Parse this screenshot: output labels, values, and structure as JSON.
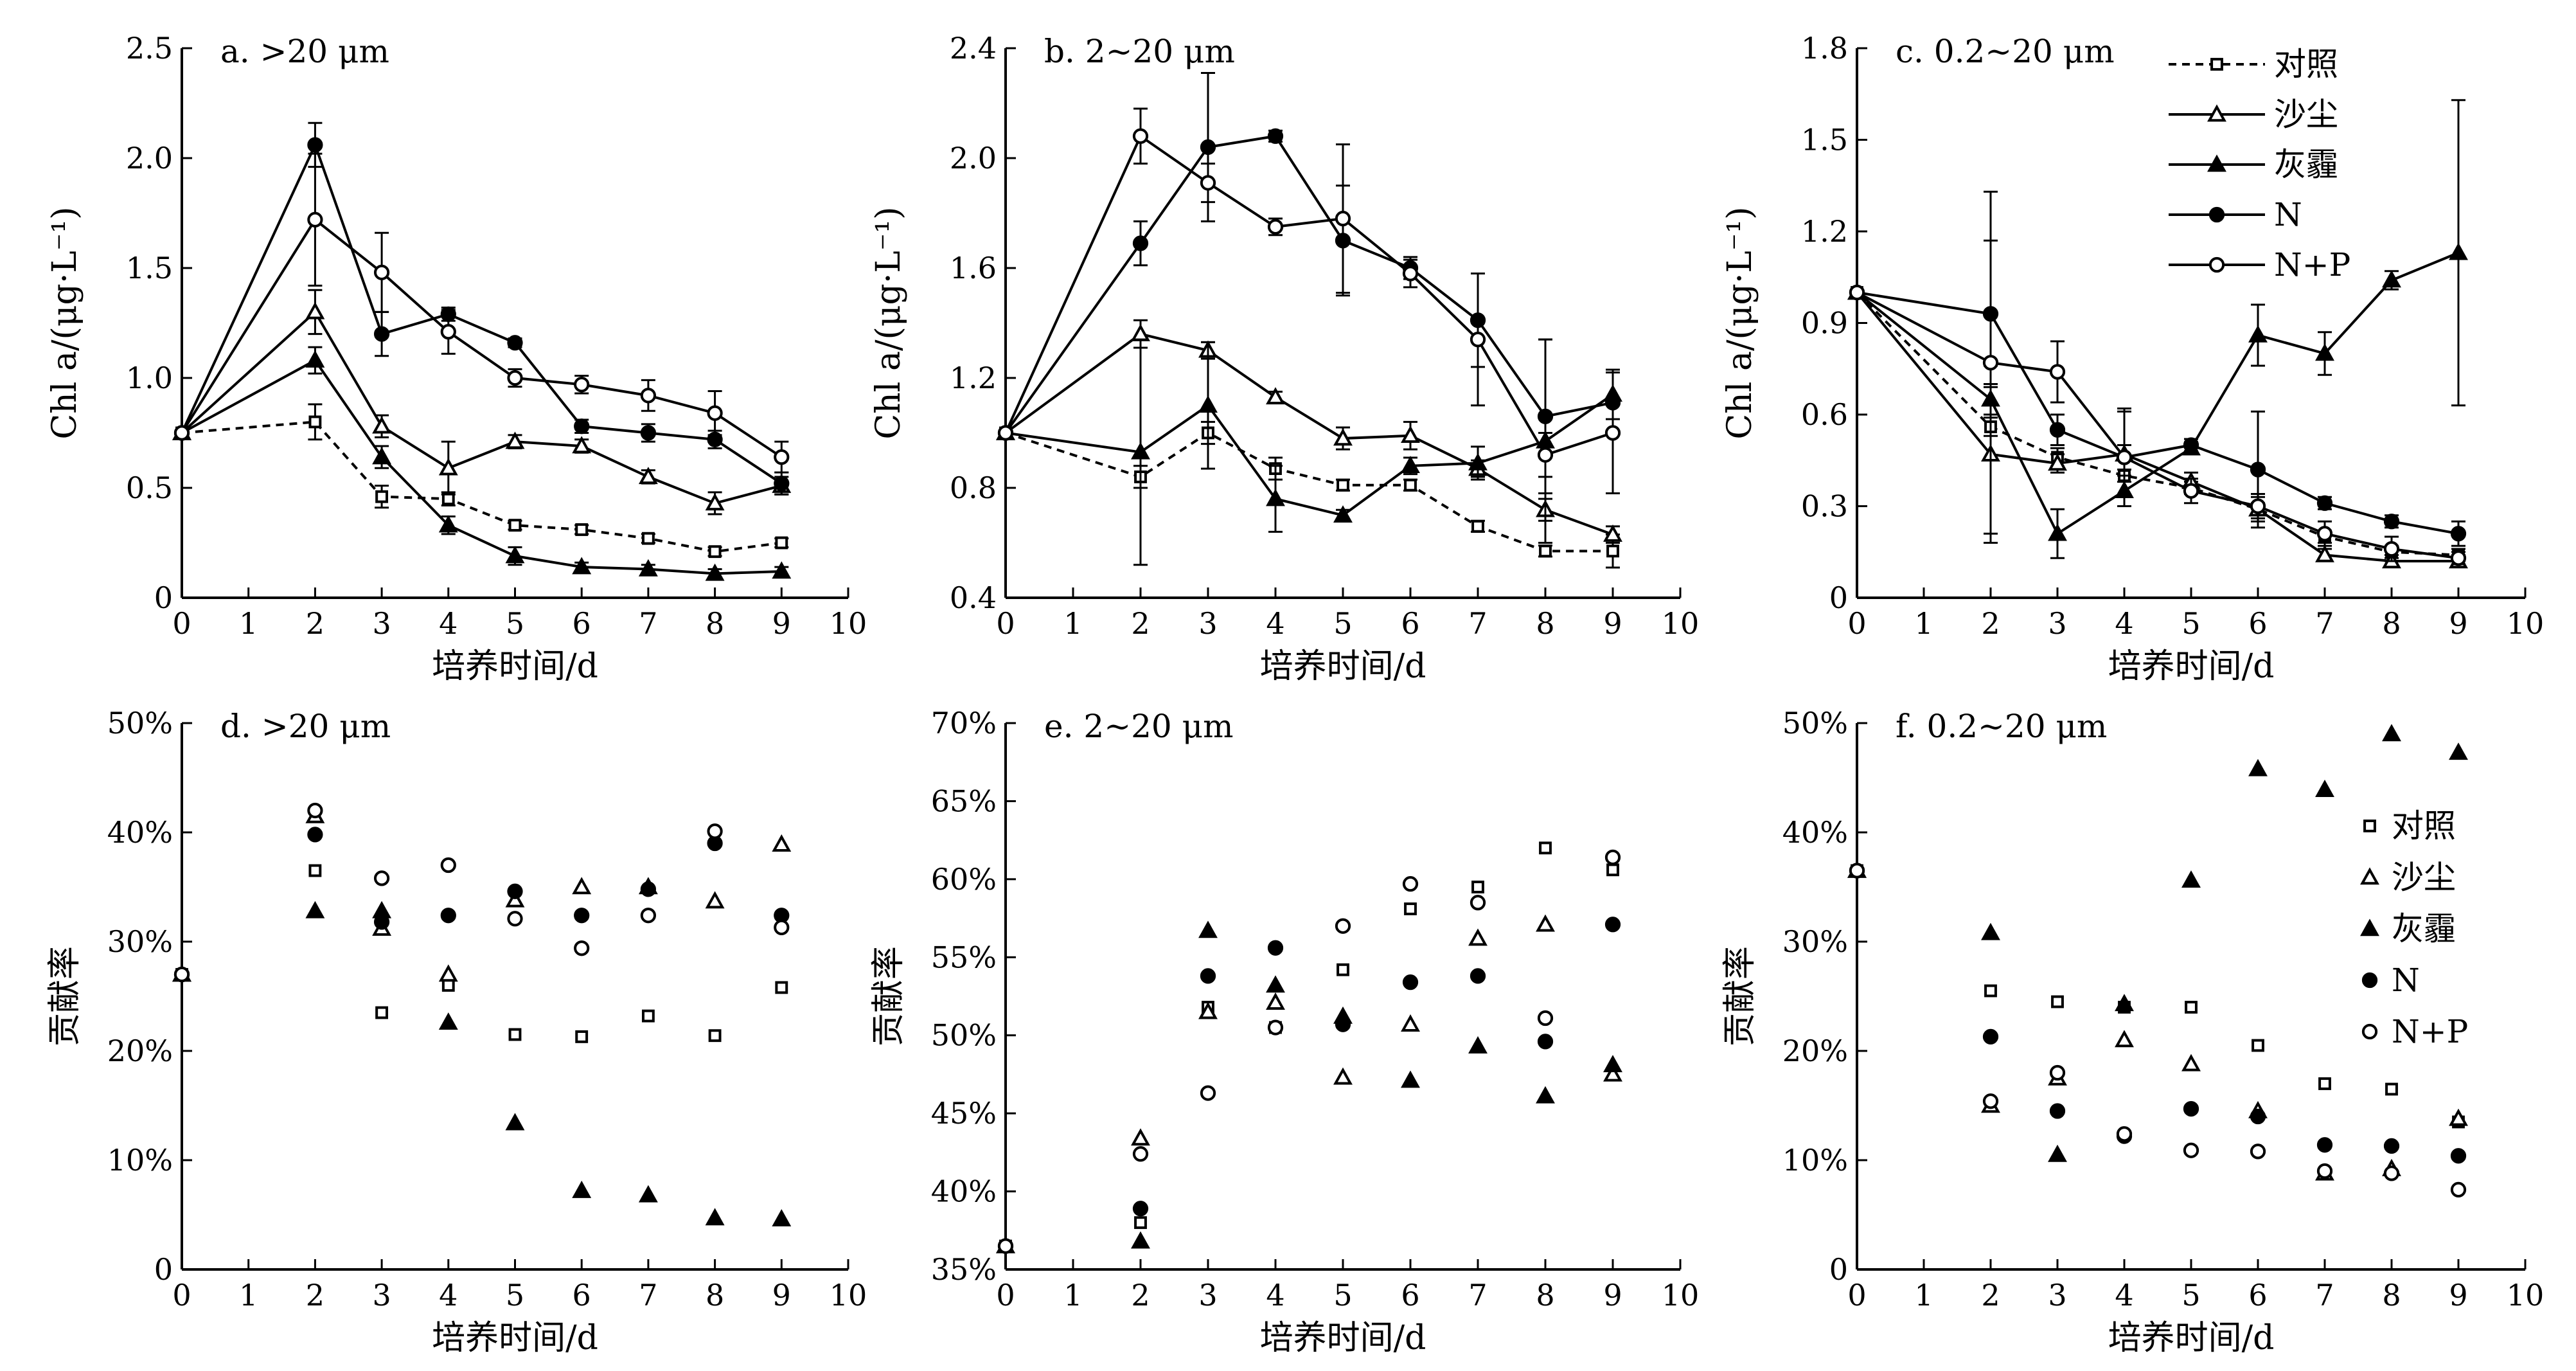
{
  "figure": {
    "x_axis_title": "培养时间/d",
    "legend": [
      {
        "name": "对照",
        "marker": "square",
        "line": "dashed"
      },
      {
        "name": "沙尘",
        "marker": "triangle-open",
        "line": "solid"
      },
      {
        "name": "灰霾",
        "marker": "triangle-filled",
        "line": "solid"
      },
      {
        "name": "N",
        "marker": "circle-filled",
        "line": "solid"
      },
      {
        "name": "N+P",
        "marker": "circle-open",
        "line": "solid"
      }
    ]
  },
  "chart_data": [
    {
      "id": "a",
      "type": "line",
      "title": "a. >20 μm",
      "xlabel": "培养时间/d",
      "ylabel": "Chl a/(μg·L⁻¹)",
      "xlim": [
        0,
        10
      ],
      "ylim": [
        0,
        2.5
      ],
      "xticks": [
        "0",
        "1",
        "2",
        "3",
        "4",
        "5",
        "6",
        "7",
        "8",
        "9",
        "10"
      ],
      "yticks": [
        "0",
        "0.5",
        "1.0",
        "1.5",
        "2.0",
        "2.5"
      ],
      "x": [
        0,
        2,
        3,
        4,
        5,
        6,
        7,
        8,
        9
      ],
      "series": [
        {
          "name": "对照",
          "values": [
            0.75,
            0.8,
            0.46,
            0.45,
            0.33,
            0.31,
            0.27,
            0.21,
            0.25
          ],
          "err": [
            0,
            0.08,
            0.05,
            0.03,
            0.02,
            0.02,
            0.02,
            0.02,
            0.02
          ]
        },
        {
          "name": "沙尘",
          "values": [
            0.75,
            1.3,
            0.78,
            0.59,
            0.71,
            0.69,
            0.55,
            0.43,
            0.51
          ],
          "err": [
            0,
            0.1,
            0.05,
            0.12,
            0.03,
            0.03,
            0.03,
            0.05,
            0.04
          ]
        },
        {
          "name": "灰霾",
          "values": [
            0.75,
            1.08,
            0.64,
            0.33,
            0.19,
            0.14,
            0.13,
            0.11,
            0.12
          ],
          "err": [
            0,
            0.06,
            0.05,
            0.04,
            0.04,
            0.02,
            0.02,
            0.02,
            0.02
          ]
        },
        {
          "name": "N",
          "values": [
            0.75,
            2.06,
            1.2,
            1.29,
            1.16,
            0.78,
            0.75,
            0.72,
            0.52
          ],
          "err": [
            0,
            0.1,
            0.1,
            0.03,
            0.02,
            0.03,
            0.04,
            0.04,
            0.05
          ]
        },
        {
          "name": "N+P",
          "values": [
            0.75,
            1.72,
            1.48,
            1.21,
            1.0,
            0.97,
            0.92,
            0.84,
            0.64
          ],
          "err": [
            0,
            0.3,
            0.18,
            0.1,
            0.04,
            0.04,
            0.07,
            0.1,
            0.07
          ]
        }
      ]
    },
    {
      "id": "b",
      "type": "line",
      "title": "b. 2~20 μm",
      "xlabel": "培养时间/d",
      "ylabel": "Chl a/(μg·L⁻¹)",
      "xlim": [
        0,
        10
      ],
      "ylim": [
        0.4,
        2.4
      ],
      "xticks": [
        "0",
        "1",
        "2",
        "3",
        "4",
        "5",
        "6",
        "7",
        "8",
        "9",
        "10"
      ],
      "yticks": [
        "0.4",
        "0.8",
        "1.2",
        "1.6",
        "2.0",
        "2.4"
      ],
      "x": [
        0,
        2,
        3,
        4,
        5,
        6,
        7,
        8,
        9
      ],
      "series": [
        {
          "name": "对照",
          "values": [
            1.0,
            0.84,
            1.0,
            0.87,
            0.81,
            0.81,
            0.66,
            0.57,
            0.57
          ],
          "err": [
            0,
            0.04,
            0.04,
            0.04,
            0.02,
            0.02,
            0.02,
            0.02,
            0.06
          ]
        },
        {
          "name": "沙尘",
          "values": [
            1.0,
            1.36,
            1.3,
            1.13,
            0.98,
            0.99,
            0.87,
            0.72,
            0.63
          ],
          "err": [
            0,
            0.05,
            0.03,
            0.02,
            0.04,
            0.05,
            0.03,
            0.04,
            0.03
          ]
        },
        {
          "name": "灰霾",
          "values": [
            1.0,
            0.93,
            1.1,
            0.76,
            0.7,
            0.88,
            0.89,
            0.97,
            1.14
          ],
          "err": [
            0,
            0.41,
            0.23,
            0.12,
            0.02,
            0.03,
            0.06,
            0.37,
            0.09
          ]
        },
        {
          "name": "N",
          "values": [
            1.0,
            1.69,
            2.04,
            2.08,
            1.7,
            1.6,
            1.41,
            1.06,
            1.11
          ],
          "err": [
            0,
            0.08,
            0.27,
            0.02,
            0.2,
            0.04,
            0.17,
            0.28,
            0.11
          ]
        },
        {
          "name": "N+P",
          "values": [
            1.0,
            2.08,
            1.91,
            1.75,
            1.78,
            1.58,
            1.34,
            0.92,
            1.0
          ],
          "err": [
            0,
            0.1,
            0.07,
            0.03,
            0.27,
            0.05,
            0.24,
            0.08,
            0.22
          ]
        }
      ]
    },
    {
      "id": "c",
      "type": "line",
      "title": "c. 0.2~20 μm",
      "xlabel": "培养时间/d",
      "ylabel": "Chl a/(μg·L⁻¹)",
      "xlim": [
        0,
        10
      ],
      "ylim": [
        0,
        1.8
      ],
      "xticks": [
        "0",
        "1",
        "2",
        "3",
        "4",
        "5",
        "6",
        "7",
        "8",
        "9",
        "10"
      ],
      "yticks": [
        "0",
        "0.3",
        "0.6",
        "0.9",
        "1.2",
        "1.5",
        "1.8"
      ],
      "x": [
        0,
        2,
        3,
        4,
        5,
        6,
        7,
        8,
        9
      ],
      "series": [
        {
          "name": "对照",
          "values": [
            1.0,
            0.56,
            0.46,
            0.4,
            0.36,
            0.29,
            0.2,
            0.15,
            0.14
          ],
          "err": [
            0,
            0.03,
            0.03,
            0.02,
            0.02,
            0.02,
            0.02,
            0.02,
            0.02
          ]
        },
        {
          "name": "沙尘",
          "values": [
            1.0,
            0.47,
            0.44,
            0.47,
            0.38,
            0.29,
            0.14,
            0.12,
            0.12
          ],
          "err": [
            0,
            0.29,
            0.03,
            0.14,
            0.03,
            0.04,
            0.02,
            0.02,
            0.02
          ]
        },
        {
          "name": "灰霾",
          "values": [
            1.0,
            0.65,
            0.21,
            0.35,
            0.49,
            0.86,
            0.8,
            1.04,
            1.13
          ],
          "err": [
            0,
            0.05,
            0.08,
            0.05,
            0.02,
            0.1,
            0.07,
            0.03,
            0.5
          ]
        },
        {
          "name": "N",
          "values": [
            1.0,
            0.93,
            0.55,
            0.46,
            0.5,
            0.42,
            0.31,
            0.25,
            0.21
          ],
          "err": [
            0,
            0.24,
            0.05,
            0.04,
            0.02,
            0.19,
            0.02,
            0.02,
            0.04
          ]
        },
        {
          "name": "N+P",
          "values": [
            1.0,
            0.77,
            0.74,
            0.46,
            0.35,
            0.3,
            0.21,
            0.16,
            0.13
          ],
          "err": [
            0,
            0.56,
            0.1,
            0.16,
            0.04,
            0.04,
            0.04,
            0.04,
            0.02
          ]
        }
      ]
    },
    {
      "id": "d",
      "type": "scatter",
      "title": "d. >20 μm",
      "xlabel": "培养时间/d",
      "ylabel": "贡献率",
      "xlim": [
        0,
        10
      ],
      "ylim": [
        0,
        50
      ],
      "xticks": [
        "0",
        "1",
        "2",
        "3",
        "4",
        "5",
        "6",
        "7",
        "8",
        "9",
        "10"
      ],
      "yticks": [
        "0",
        "10%",
        "20%",
        "30%",
        "40%",
        "50%"
      ],
      "x": [
        0,
        2,
        3,
        4,
        5,
        6,
        7,
        8,
        9
      ],
      "series": [
        {
          "name": "对照",
          "values": [
            27.0,
            36.5,
            23.5,
            26.0,
            21.5,
            21.3,
            23.2,
            21.4,
            25.8
          ]
        },
        {
          "name": "沙尘",
          "values": [
            27.0,
            41.5,
            31.2,
            27.0,
            33.8,
            35.0,
            35.0,
            33.7,
            38.9
          ]
        },
        {
          "name": "灰霾",
          "values": [
            27.0,
            32.8,
            32.8,
            22.6,
            13.4,
            7.2,
            6.8,
            4.7,
            4.6
          ]
        },
        {
          "name": "N",
          "values": [
            27.0,
            39.8,
            31.8,
            32.4,
            34.6,
            32.4,
            34.8,
            39.0,
            32.4
          ]
        },
        {
          "name": "N+P",
          "values": [
            27.0,
            42.0,
            35.8,
            37.0,
            32.1,
            29.4,
            32.4,
            40.1,
            31.3
          ]
        }
      ]
    },
    {
      "id": "e",
      "type": "scatter",
      "title": "e. 2~20 μm",
      "xlabel": "培养时间/d",
      "ylabel": "贡献率",
      "xlim": [
        0,
        10
      ],
      "ylim": [
        35,
        70
      ],
      "xticks": [
        "0",
        "1",
        "2",
        "3",
        "4",
        "5",
        "6",
        "7",
        "8",
        "9",
        "10"
      ],
      "yticks": [
        "35%",
        "40%",
        "45%",
        "50%",
        "55%",
        "60%",
        "65%",
        "70%"
      ],
      "x": [
        0,
        2,
        3,
        4,
        5,
        6,
        7,
        8,
        9
      ],
      "series": [
        {
          "name": "对照",
          "values": [
            36.5,
            38.0,
            51.8,
            50.5,
            54.2,
            58.1,
            59.5,
            62.0,
            60.6
          ]
        },
        {
          "name": "沙尘",
          "values": [
            36.5,
            43.4,
            51.5,
            52.1,
            47.3,
            50.7,
            56.2,
            57.1,
            47.5
          ]
        },
        {
          "name": "灰霾",
          "values": [
            36.5,
            36.8,
            56.7,
            53.2,
            51.2,
            47.1,
            49.3,
            46.1,
            48.1
          ]
        },
        {
          "name": "N",
          "values": [
            36.5,
            38.9,
            53.8,
            55.6,
            50.7,
            53.4,
            53.8,
            49.6,
            57.1
          ]
        },
        {
          "name": "N+P",
          "values": [
            36.5,
            42.4,
            46.3,
            50.5,
            57.0,
            59.7,
            58.5,
            51.1,
            61.4
          ]
        }
      ]
    },
    {
      "id": "f",
      "type": "scatter",
      "title": "f. 0.2~20 μm",
      "xlabel": "培养时间/d",
      "ylabel": "贡献率",
      "xlim": [
        0,
        10
      ],
      "ylim": [
        0,
        50
      ],
      "xticks": [
        "0",
        "1",
        "2",
        "3",
        "4",
        "5",
        "6",
        "7",
        "8",
        "9",
        "10"
      ],
      "yticks": [
        "0",
        "10%",
        "20%",
        "30%",
        "40%",
        "50%"
      ],
      "x": [
        0,
        2,
        3,
        4,
        5,
        6,
        7,
        8,
        9
      ],
      "legend_items": [
        "对照",
        "沙尘",
        "灰霾",
        "N",
        "N+P"
      ],
      "series": [
        {
          "name": "对照",
          "values": [
            36.5,
            25.5,
            24.5,
            24.0,
            24.0,
            20.5,
            17.0,
            16.5,
            13.5
          ]
        },
        {
          "name": "沙尘",
          "values": [
            36.5,
            15.0,
            17.5,
            21.0,
            18.8,
            14.5,
            8.8,
            9.2,
            13.8
          ]
        },
        {
          "name": "灰霾",
          "values": [
            36.5,
            30.8,
            10.5,
            24.3,
            35.6,
            45.8,
            43.9,
            49.0,
            47.3
          ]
        },
        {
          "name": "N",
          "values": [
            36.5,
            21.3,
            14.5,
            12.2,
            14.7,
            14.0,
            11.4,
            11.3,
            10.4
          ]
        },
        {
          "name": "N+P",
          "values": [
            36.5,
            15.4,
            18.0,
            12.4,
            10.9,
            10.8,
            9.0,
            8.8,
            7.3
          ]
        }
      ]
    }
  ]
}
